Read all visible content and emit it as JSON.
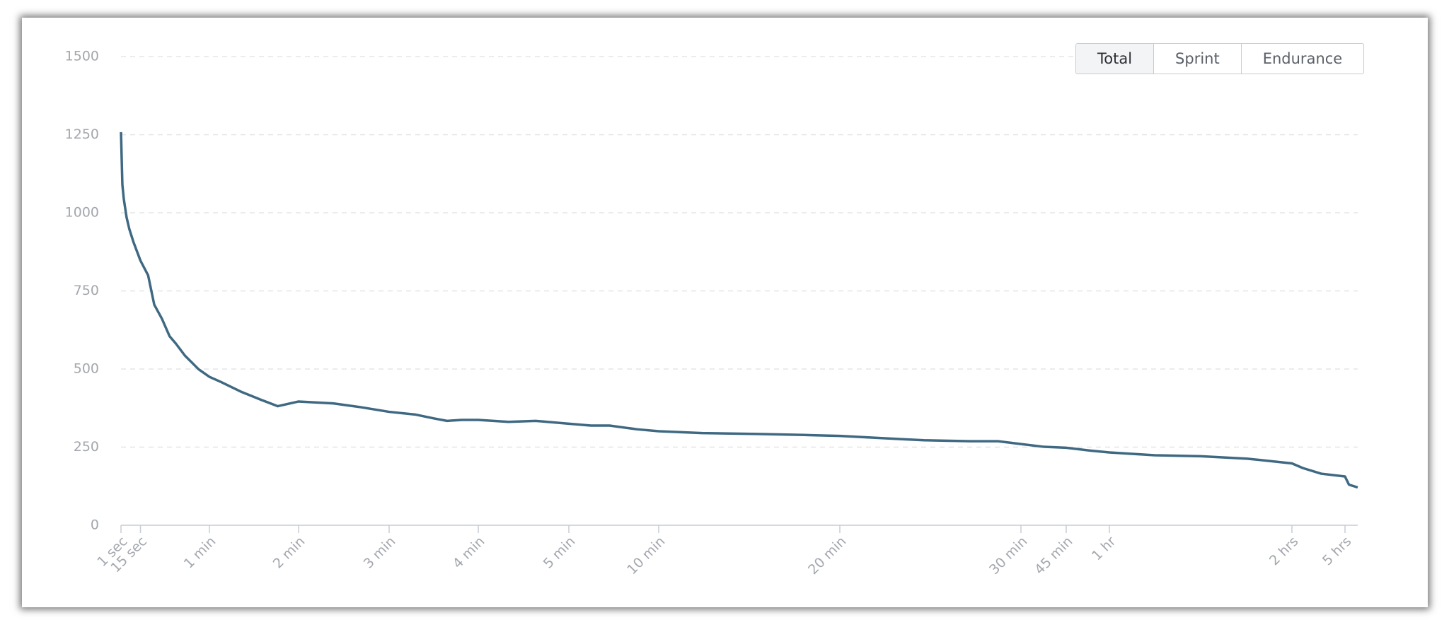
{
  "controls": {
    "buttons": [
      "Total",
      "Sprint",
      "Endurance"
    ],
    "selected": 0
  },
  "chart_data": {
    "type": "line",
    "x": [
      1,
      2,
      3,
      5,
      7,
      10,
      15,
      20,
      24,
      29,
      34,
      38,
      44,
      53,
      60,
      68,
      81,
      95,
      106,
      120,
      143,
      161,
      180,
      198,
      210,
      219,
      229,
      240,
      260,
      278,
      300,
      374,
      436,
      529,
      600,
      744,
      927,
      1081,
      1200,
      1356,
      1479,
      1632,
      1724,
      1800,
      2260,
      2700,
      3197,
      3600,
      4496,
      5409,
      6323,
      7200,
      9434,
      13158,
      18000,
      18745,
      20400
    ],
    "series": [
      {
        "color": "#3f6982",
        "values": [
          1258,
          1090,
          1045,
          986,
          948,
          906,
          847,
          800,
          706,
          661,
          605,
          582,
          543,
          499,
          475,
          458,
          428,
          401,
          381,
          396,
          390,
          378,
          363,
          354,
          342,
          334,
          337,
          337,
          331,
          334,
          325,
          319,
          319,
          307,
          301,
          295,
          292,
          289,
          286,
          278,
          272,
          269,
          269,
          260,
          251,
          248,
          239,
          233,
          224,
          221,
          213,
          198,
          183,
          165,
          156,
          130,
          121
        ]
      }
    ],
    "xlim": [
      1,
      20400
    ],
    "xticks": [
      {
        "value": 1,
        "label": "1 sec"
      },
      {
        "value": 15,
        "label": "15 sec"
      },
      {
        "value": 60,
        "label": "1 min"
      },
      {
        "value": 120,
        "label": "2 min"
      },
      {
        "value": 180,
        "label": "3 min"
      },
      {
        "value": 240,
        "label": "4 min"
      },
      {
        "value": 300,
        "label": "5 min"
      },
      {
        "value": 600,
        "label": "10 min"
      },
      {
        "value": 1200,
        "label": "20 min"
      },
      {
        "value": 1800,
        "label": "30 min"
      },
      {
        "value": 2700,
        "label": "45 min"
      },
      {
        "value": 3600,
        "label": "1 hr"
      },
      {
        "value": 7200,
        "label": "2 hrs"
      },
      {
        "value": 18000,
        "label": "5 hrs"
      }
    ],
    "ylim": [
      0,
      1500
    ],
    "yticks": [
      0,
      250,
      500,
      750,
      1000,
      1250,
      1500
    ],
    "grid": true
  }
}
